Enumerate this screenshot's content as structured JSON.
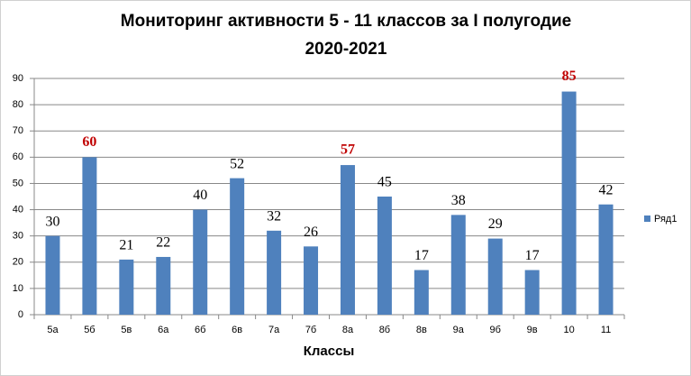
{
  "chart_data": {
    "type": "bar",
    "title": [
      "Мониторинг активности  5 - 11 классов за I полугодие",
      "2020-2021"
    ],
    "x_label": "Классы",
    "categories": [
      "5а",
      "5б",
      "5в",
      "6а",
      "6б",
      "6в",
      "7а",
      "7б",
      "8а",
      "8б",
      "8в",
      "9а",
      "9б",
      "9в",
      "10",
      "11"
    ],
    "series": [
      {
        "name": "Ряд1",
        "color": "#4f81bd",
        "values": [
          30,
          60,
          21,
          22,
          40,
          52,
          32,
          26,
          57,
          45,
          17,
          38,
          29,
          17,
          85,
          42
        ],
        "value_label_colors": [
          "#000000",
          "#c00000",
          "#000000",
          "#000000",
          "#000000",
          "#000000",
          "#000000",
          "#000000",
          "#c00000",
          "#000000",
          "#000000",
          "#000000",
          "#000000",
          "#000000",
          "#c00000",
          "#000000"
        ]
      }
    ],
    "ylim": [
      0,
      90
    ],
    "yticks": [
      0,
      10,
      20,
      30,
      40,
      50,
      60,
      70,
      80,
      90
    ],
    "grid": true,
    "legend": "right"
  }
}
